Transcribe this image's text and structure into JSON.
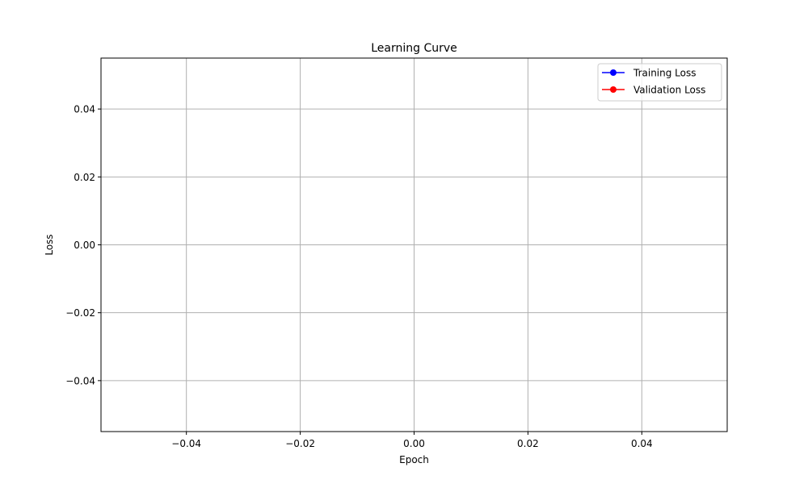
{
  "chart_data": {
    "type": "line",
    "title": "Learning Curve",
    "xlabel": "Epoch",
    "ylabel": "Loss",
    "xlim": [
      -0.055,
      0.055
    ],
    "ylim": [
      -0.055,
      0.055
    ],
    "x_ticks": [
      -0.04,
      -0.02,
      0.0,
      0.02,
      0.04
    ],
    "x_tick_labels": [
      "−0.04",
      "−0.02",
      "0.00",
      "0.02",
      "0.04"
    ],
    "y_ticks": [
      -0.04,
      -0.02,
      0.0,
      0.02,
      0.04
    ],
    "y_tick_labels": [
      "−0.04",
      "−0.02",
      "0.00",
      "0.02",
      "0.04"
    ],
    "grid": true,
    "legend_position": "top-right",
    "series": [
      {
        "name": "Training Loss",
        "color": "#0000ff",
        "marker": "circle",
        "x": [],
        "y": []
      },
      {
        "name": "Validation Loss",
        "color": "#ff0000",
        "marker": "circle",
        "x": [],
        "y": []
      }
    ]
  }
}
